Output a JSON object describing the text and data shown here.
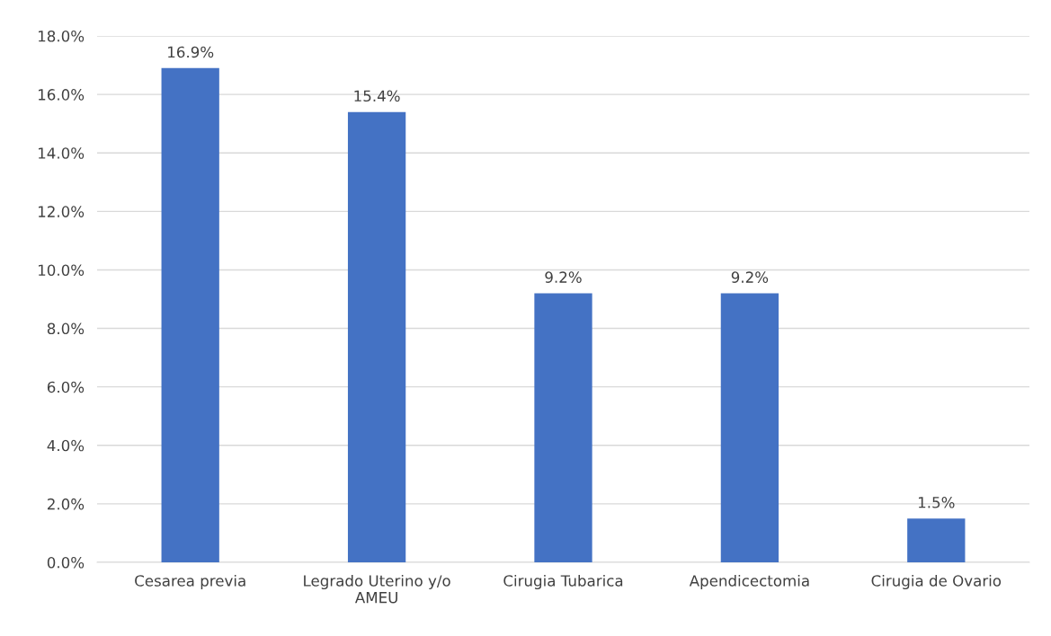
{
  "chart_data": {
    "type": "bar",
    "categories": [
      "Cesarea previa",
      "Legrado Uterino y/o\nAMEU",
      "Cirugia Tubarica",
      "Apendicectomia",
      "Cirugia de Ovario"
    ],
    "values": [
      16.9,
      15.4,
      9.2,
      9.2,
      1.5
    ],
    "color": "#4472c4",
    "value_labels": [
      "16.9%",
      "15.4%",
      "9.2%",
      "9.2%",
      "1.5%"
    ],
    "ylim": [
      0,
      18
    ],
    "yticks": [
      {
        "value": 0,
        "label": "0.0%"
      },
      {
        "value": 2,
        "label": "2.0%"
      },
      {
        "value": 4,
        "label": "4.0%"
      },
      {
        "value": 6,
        "label": "6.0%"
      },
      {
        "value": 8,
        "label": "8.0%"
      },
      {
        "value": 10,
        "label": "10.0%"
      },
      {
        "value": 12,
        "label": "12.0%"
      },
      {
        "value": 14,
        "label": "14.0%"
      },
      {
        "value": 16,
        "label": "16.0%"
      },
      {
        "value": 18,
        "label": "18.0%"
      }
    ],
    "grid": "y"
  }
}
